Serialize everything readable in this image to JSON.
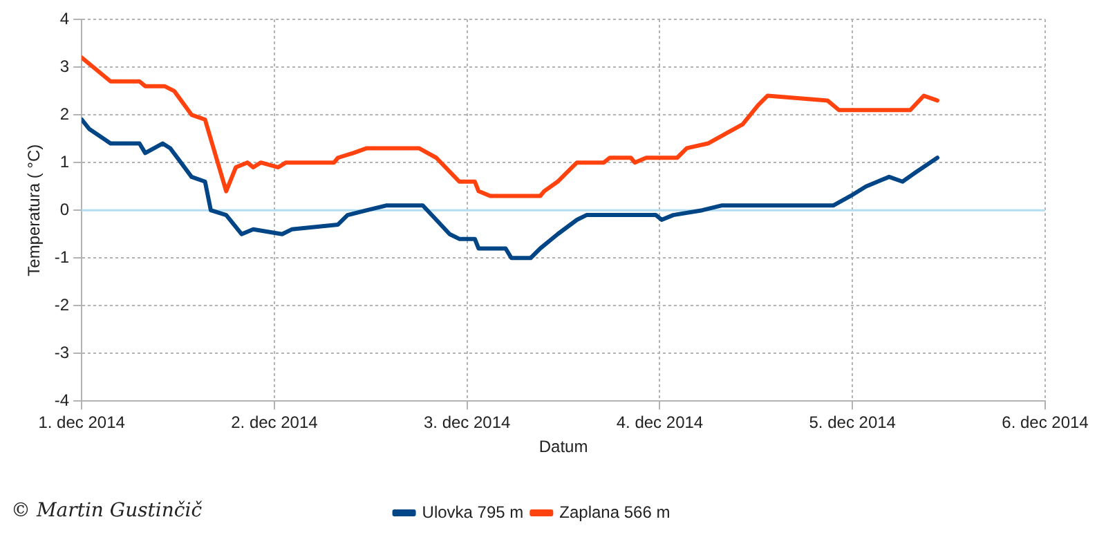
{
  "chart_data": {
    "type": "line",
    "xlabel": "Datum",
    "ylabel": "Temperatura ( °C)",
    "xlim": [
      "2014-12-01",
      "2014-12-06"
    ],
    "xticks": [
      {
        "value": "2014-12-01",
        "label": "1. dec 2014"
      },
      {
        "value": "2014-12-02",
        "label": "2. dec 2014"
      },
      {
        "value": "2014-12-03",
        "label": "3. dec 2014"
      },
      {
        "value": "2014-12-04",
        "label": "4. dec 2014"
      },
      {
        "value": "2014-12-05",
        "label": "5. dec 2014"
      },
      {
        "value": "2014-12-06",
        "label": "6. dec 2014"
      }
    ],
    "ylim": [
      -4,
      4
    ],
    "yticks": [
      -4,
      -3,
      -2,
      -1,
      0,
      1,
      2,
      3,
      4
    ],
    "grid": true,
    "legend": "bottom",
    "marker": "none",
    "line_style": "solid",
    "ref_lines": [
      {
        "axis": "y",
        "value": 0,
        "color": "#b3def2"
      }
    ],
    "annotations": [
      "© Martin Gustinčič"
    ],
    "series": [
      {
        "name": "Ulovka 795 m",
        "color": "#004586",
        "x": [
          "2014-12-01T00:00",
          "2014-12-01T00:58",
          "2014-12-01T03:36",
          "2014-12-01T07:12",
          "2014-12-01T07:55",
          "2014-12-01T10:05",
          "2014-12-01T11:02",
          "2014-12-01T13:41",
          "2014-12-01T15:22",
          "2014-12-01T16:05",
          "2014-12-01T18:00",
          "2014-12-01T19:55",
          "2014-12-01T21:22",
          "2014-12-02T00:58",
          "2014-12-02T02:10",
          "2014-12-02T07:55",
          "2014-12-02T09:07",
          "2014-12-02T11:31",
          "2014-12-02T13:55",
          "2014-12-02T18:29",
          "2014-12-02T20:10",
          "2014-12-02T21:50",
          "2014-12-02T23:02",
          "2014-12-03T00:58",
          "2014-12-03T01:26",
          "2014-12-03T04:48",
          "2014-12-03T05:31",
          "2014-12-03T07:55",
          "2014-12-03T09:07",
          "2014-12-03T11:17",
          "2014-12-03T13:41",
          "2014-12-03T14:53",
          "2014-12-03T23:31",
          "2014-12-04T00:14",
          "2014-12-04T01:41",
          "2014-12-04T05:17",
          "2014-12-04T07:41",
          "2014-12-04T21:36",
          "2014-12-04T23:46",
          "2014-12-05T01:41",
          "2014-12-05T04:34",
          "2014-12-05T06:14",
          "2014-12-05T07:55",
          "2014-12-05T10:34"
        ],
        "values": [
          1.9,
          1.7,
          1.4,
          1.4,
          1.2,
          1.4,
          1.3,
          0.7,
          0.6,
          0.0,
          -0.1,
          -0.5,
          -0.4,
          -0.5,
          -0.4,
          -0.3,
          -0.1,
          0.0,
          0.1,
          0.1,
          -0.2,
          -0.5,
          -0.6,
          -0.6,
          -0.8,
          -0.8,
          -1.0,
          -1.0,
          -0.8,
          -0.5,
          -0.2,
          -0.1,
          -0.1,
          -0.2,
          -0.1,
          0.0,
          0.1,
          0.1,
          0.3,
          0.5,
          0.7,
          0.6,
          0.8,
          1.1
        ]
      },
      {
        "name": "Zaplana 566 m",
        "color": "#ff420e",
        "x": [
          "2014-12-01T00:00",
          "2014-12-01T03:36",
          "2014-12-01T07:12",
          "2014-12-01T07:55",
          "2014-12-01T10:19",
          "2014-12-01T11:31",
          "2014-12-01T13:41",
          "2014-12-01T15:22",
          "2014-12-01T18:00",
          "2014-12-01T19:12",
          "2014-12-01T20:38",
          "2014-12-01T21:22",
          "2014-12-01T22:19",
          "2014-12-02T00:29",
          "2014-12-02T01:26",
          "2014-12-02T07:26",
          "2014-12-02T07:55",
          "2014-12-02T09:50",
          "2014-12-02T11:31",
          "2014-12-02T18:00",
          "2014-12-02T20:10",
          "2014-12-02T23:02",
          "2014-12-03T00:58",
          "2014-12-03T01:26",
          "2014-12-03T02:53",
          "2014-12-03T09:07",
          "2014-12-03T09:36",
          "2014-12-03T11:17",
          "2014-12-03T13:41",
          "2014-12-03T17:02",
          "2014-12-03T17:46",
          "2014-12-03T20:24",
          "2014-12-03T20:53",
          "2014-12-03T22:19",
          "2014-12-04T02:10",
          "2014-12-04T03:22",
          "2014-12-04T06:00",
          "2014-12-04T08:10",
          "2014-12-04T10:19",
          "2014-12-04T12:14",
          "2014-12-04T13:26",
          "2014-12-04T20:53",
          "2014-12-04T22:19",
          "2014-12-05T00:14",
          "2014-12-05T07:12",
          "2014-12-05T08:53",
          "2014-12-05T10:34"
        ],
        "values": [
          3.2,
          2.7,
          2.7,
          2.6,
          2.6,
          2.5,
          2.0,
          1.9,
          0.4,
          0.9,
          1.0,
          0.9,
          1.0,
          0.9,
          1.0,
          1.0,
          1.1,
          1.2,
          1.3,
          1.3,
          1.1,
          0.6,
          0.6,
          0.4,
          0.3,
          0.3,
          0.4,
          0.6,
          1.0,
          1.0,
          1.1,
          1.1,
          1.0,
          1.1,
          1.1,
          1.3,
          1.4,
          1.6,
          1.8,
          2.2,
          2.4,
          2.3,
          2.1,
          2.1,
          2.1,
          2.4,
          2.3
        ]
      }
    ]
  }
}
